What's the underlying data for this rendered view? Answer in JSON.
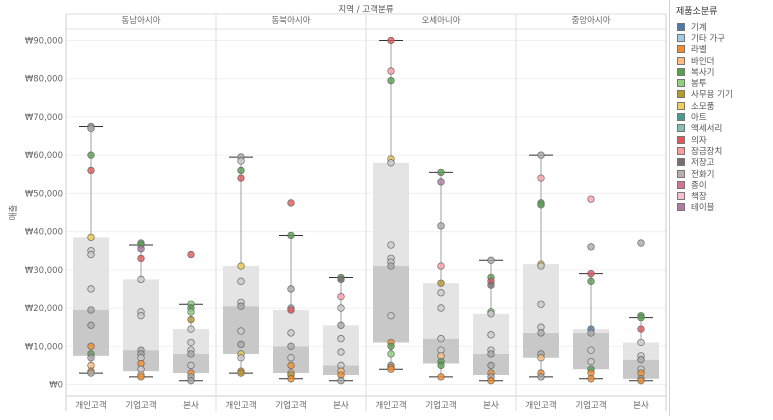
{
  "chart_data": {
    "type": "boxplot",
    "header_title": "지역 / 고객분류",
    "ylabel": "매출",
    "ylim": [
      -3000,
      93000
    ],
    "yticks": [
      {
        "v": 0,
        "label": "₩0"
      },
      {
        "v": 10000,
        "label": "₩10,000"
      },
      {
        "v": 20000,
        "label": "₩20,000"
      },
      {
        "v": 30000,
        "label": "₩30,000"
      },
      {
        "v": 40000,
        "label": "₩40,000"
      },
      {
        "v": 50000,
        "label": "₩50,000"
      },
      {
        "v": 60000,
        "label": "₩60,000"
      },
      {
        "v": 70000,
        "label": "₩70,000"
      },
      {
        "v": 80000,
        "label": "₩80,000"
      },
      {
        "v": 90000,
        "label": "₩90,000"
      }
    ],
    "panels": [
      {
        "region": "동남아시아",
        "groups": [
          {
            "name": "개인고객",
            "min": 3000,
            "q1": 7500,
            "median": 19500,
            "q3": 38500,
            "max": 67500,
            "points": [
              [
                67500,
                "#999999"
              ],
              [
                67000,
                "#AAAAAA"
              ],
              [
                60000,
                "#59A14F"
              ],
              [
                56000,
                "#E15759"
              ],
              [
                38500,
                "#EDC948"
              ],
              [
                35000,
                "#CCCCCC"
              ],
              [
                34000,
                "#CCCCCC"
              ],
              [
                25000,
                "#CCCCCC"
              ],
              [
                19500,
                "#AAAAAA"
              ],
              [
                15500,
                "#AAAAAA"
              ],
              [
                10000,
                "#F28E2B"
              ],
              [
                8000,
                "#59A14F"
              ],
              [
                7000,
                "#AAAAAA"
              ],
              [
                5000,
                "#FFBE7D"
              ],
              [
                3500,
                "#F28E2B"
              ],
              [
                3000,
                "#AAAAAA"
              ]
            ]
          },
          {
            "name": "기업고객",
            "min": 2000,
            "q1": 3500,
            "median": 9000,
            "q3": 27500,
            "max": 36500,
            "points": [
              [
                37000,
                "#59A14F"
              ],
              [
                36500,
                "#59A14F"
              ],
              [
                35500,
                "#B07AA1"
              ],
              [
                33000,
                "#E15759"
              ],
              [
                27500,
                "#CCCCCC"
              ],
              [
                19000,
                "#CCCCCC"
              ],
              [
                18000,
                "#CCCCCC"
              ],
              [
                9000,
                "#AAAAAA"
              ],
              [
                8000,
                "#AAAAAA"
              ],
              [
                7000,
                "#CCCCCC"
              ],
              [
                5500,
                "#F28E2B"
              ],
              [
                4000,
                "#CCCCCC"
              ],
              [
                2500,
                "#FFBE7D"
              ],
              [
                2000,
                "#F28E2B"
              ]
            ]
          },
          {
            "name": "본사",
            "min": 1000,
            "q1": 3000,
            "median": 8000,
            "q3": 14500,
            "max": 21000,
            "points": [
              [
                34000,
                "#E15759"
              ],
              [
                21000,
                "#8CD17D"
              ],
              [
                20000,
                "#59A14F"
              ],
              [
                19000,
                "#8CD17D"
              ],
              [
                17000,
                "#B6992D"
              ],
              [
                14500,
                "#CCCCCC"
              ],
              [
                11000,
                "#CCCCCC"
              ],
              [
                9000,
                "#CCCCCC"
              ],
              [
                8000,
                "#AAAAAA"
              ],
              [
                5000,
                "#CCCCCC"
              ],
              [
                3000,
                "#F28E2B"
              ],
              [
                2000,
                "#AAAAAA"
              ],
              [
                1000,
                "#AAAAAA"
              ]
            ]
          }
        ]
      },
      {
        "region": "동북아시아",
        "groups": [
          {
            "name": "개인고객",
            "min": 3000,
            "q1": 8000,
            "median": 20500,
            "q3": 31000,
            "max": 59500,
            "points": [
              [
                59500,
                "#AAAAAA"
              ],
              [
                58500,
                "#CCCCCC"
              ],
              [
                56000,
                "#59A14F"
              ],
              [
                54000,
                "#E15759"
              ],
              [
                31000,
                "#EDC948"
              ],
              [
                27000,
                "#CCCCCC"
              ],
              [
                21500,
                "#CCCCCC"
              ],
              [
                20500,
                "#AAAAAA"
              ],
              [
                14000,
                "#CCCCCC"
              ],
              [
                10500,
                "#AAAAAA"
              ],
              [
                8000,
                "#EDC948"
              ],
              [
                7000,
                "#CCCCCC"
              ],
              [
                3500,
                "#F28E2B"
              ],
              [
                3000,
                "#B6992D"
              ]
            ]
          },
          {
            "name": "기업고객",
            "min": 1500,
            "q1": 3000,
            "median": 10000,
            "q3": 19500,
            "max": 39000,
            "points": [
              [
                47500,
                "#E15759"
              ],
              [
                39000,
                "#59A14F"
              ],
              [
                25000,
                "#AAAAAA"
              ],
              [
                20000,
                "#AAAAAA"
              ],
              [
                19500,
                "#E15759"
              ],
              [
                13500,
                "#CCCCCC"
              ],
              [
                10000,
                "#AAAAAA"
              ],
              [
                7000,
                "#CCCCCC"
              ],
              [
                5000,
                "#F28E2B"
              ],
              [
                3000,
                "#FFBE7D"
              ],
              [
                2500,
                "#B6992D"
              ],
              [
                1500,
                "#F28E2B"
              ]
            ]
          },
          {
            "name": "본사",
            "min": 1000,
            "q1": 2500,
            "median": 5000,
            "q3": 15500,
            "max": 28000,
            "points": [
              [
                28000,
                "#59A14F"
              ],
              [
                27500,
                "#79706E"
              ],
              [
                23000,
                "#FF9DA7"
              ],
              [
                20000,
                "#CCCCCC"
              ],
              [
                15500,
                "#AAAAAA"
              ],
              [
                12000,
                "#CCCCCC"
              ],
              [
                8500,
                "#CCCCCC"
              ],
              [
                5000,
                "#CCCCCC"
              ],
              [
                3500,
                "#FFBE7D"
              ],
              [
                2500,
                "#F28E2B"
              ],
              [
                1000,
                "#AAAAAA"
              ]
            ]
          }
        ]
      },
      {
        "region": "오세아니아",
        "groups": [
          {
            "name": "개인고객",
            "min": 4000,
            "q1": 11000,
            "median": 31000,
            "q3": 58000,
            "max": 90000,
            "points": [
              [
                90000,
                "#E15759"
              ],
              [
                82000,
                "#FF9DA7"
              ],
              [
                79500,
                "#59A14F"
              ],
              [
                59000,
                "#EDC948"
              ],
              [
                58000,
                "#CCCCCC"
              ],
              [
                36500,
                "#CCCCCC"
              ],
              [
                33000,
                "#CCCCCC"
              ],
              [
                32000,
                "#CCCCCC"
              ],
              [
                31000,
                "#AAAAAA"
              ],
              [
                18000,
                "#CCCCCC"
              ],
              [
                11000,
                "#F28E2B"
              ],
              [
                10000,
                "#59A14F"
              ],
              [
                8000,
                "#8CD17D"
              ],
              [
                5000,
                "#AAAAAA"
              ],
              [
                4500,
                "#F28E2B"
              ],
              [
                4000,
                "#F28E2B"
              ]
            ]
          },
          {
            "name": "기업고객",
            "min": 2000,
            "q1": 5500,
            "median": 12000,
            "q3": 26500,
            "max": 55500,
            "points": [
              [
                55500,
                "#59A14F"
              ],
              [
                53000,
                "#B07AA1"
              ],
              [
                41500,
                "#AAAAAA"
              ],
              [
                31000,
                "#FF9DA7"
              ],
              [
                26500,
                "#B6992D"
              ],
              [
                24000,
                "#CCCCCC"
              ],
              [
                20000,
                "#CCCCCC"
              ],
              [
                12000,
                "#CCCCCC"
              ],
              [
                9000,
                "#CCCCCC"
              ],
              [
                7500,
                "#FFBE7D"
              ],
              [
                6000,
                "#59A14F"
              ],
              [
                5000,
                "#59A14F"
              ],
              [
                2000,
                "#F28E2B"
              ]
            ]
          },
          {
            "name": "본사",
            "min": 1000,
            "q1": 2500,
            "median": 8000,
            "q3": 18500,
            "max": 32500,
            "points": [
              [
                32500,
                "#AAAAAA"
              ],
              [
                28000,
                "#59A14F"
              ],
              [
                27000,
                "#E15759"
              ],
              [
                26000,
                "#79706E"
              ],
              [
                19000,
                "#8CD17D"
              ],
              [
                18500,
                "#CCCCCC"
              ],
              [
                13000,
                "#CCCCCC"
              ],
              [
                9000,
                "#CCCCCC"
              ],
              [
                8000,
                "#AAAAAA"
              ],
              [
                5000,
                "#AAAAAA"
              ],
              [
                3000,
                "#F28E2B"
              ],
              [
                2000,
                "#AAAAAA"
              ],
              [
                1000,
                "#F28E2B"
              ]
            ]
          }
        ]
      },
      {
        "region": "중앙아시아",
        "groups": [
          {
            "name": "개인고객",
            "min": 2000,
            "q1": 7000,
            "median": 13500,
            "q3": 31500,
            "max": 60000,
            "points": [
              [
                60000,
                "#AAAAAA"
              ],
              [
                54000,
                "#FF9DA7"
              ],
              [
                47500,
                "#59A14F"
              ],
              [
                47000,
                "#59A14F"
              ],
              [
                31500,
                "#EDC948"
              ],
              [
                31000,
                "#CCCCCC"
              ],
              [
                21000,
                "#CCCCCC"
              ],
              [
                15000,
                "#CCCCCC"
              ],
              [
                13500,
                "#AAAAAA"
              ],
              [
                8000,
                "#AAAAAA"
              ],
              [
                7000,
                "#FFBE7D"
              ],
              [
                3000,
                "#F28E2B"
              ],
              [
                2000,
                "#AAAAAA"
              ]
            ]
          },
          {
            "name": "기업고객",
            "min": 1500,
            "q1": 4000,
            "median": 13500,
            "q3": 14500,
            "max": 29000,
            "points": [
              [
                48500,
                "#FF9DA7"
              ],
              [
                36000,
                "#AAAAAA"
              ],
              [
                29000,
                "#E15759"
              ],
              [
                27000,
                "#59A14F"
              ],
              [
                14500,
                "#4E79A7"
              ],
              [
                13500,
                "#AAAAAA"
              ],
              [
                9000,
                "#CCCCCC"
              ],
              [
                6000,
                "#CCCCCC"
              ],
              [
                4000,
                "#59A14F"
              ],
              [
                3000,
                "#F28E2B"
              ],
              [
                1500,
                "#F28E2B"
              ]
            ]
          },
          {
            "name": "본사",
            "min": 1000,
            "q1": 1500,
            "median": 6500,
            "q3": 11000,
            "max": 17500,
            "points": [
              [
                37000,
                "#AAAAAA"
              ],
              [
                18000,
                "#59A14F"
              ],
              [
                17500,
                "#59A14F"
              ],
              [
                14500,
                "#E15759"
              ],
              [
                11000,
                "#CCCCCC"
              ],
              [
                7500,
                "#CCCCCC"
              ],
              [
                6500,
                "#AAAAAA"
              ],
              [
                4000,
                "#CCCCCC"
              ],
              [
                3000,
                "#F28E2B"
              ],
              [
                1500,
                "#AAAAAA"
              ],
              [
                1000,
                "#F28E2B"
              ]
            ]
          }
        ]
      }
    ],
    "legend": {
      "title": "제품소분류",
      "items": [
        {
          "label": "기계",
          "color": "#4E79A7"
        },
        {
          "label": "기타 가구",
          "color": "#A0CBE8"
        },
        {
          "label": "라벨",
          "color": "#F28E2B"
        },
        {
          "label": "바인더",
          "color": "#FFBE7D"
        },
        {
          "label": "복사기",
          "color": "#59A14F"
        },
        {
          "label": "봉투",
          "color": "#8CD17D"
        },
        {
          "label": "사무용 기기",
          "color": "#B6992D"
        },
        {
          "label": "소모품",
          "color": "#F1CE63"
        },
        {
          "label": "아트",
          "color": "#499894"
        },
        {
          "label": "액세서리",
          "color": "#86BCB6"
        },
        {
          "label": "의자",
          "color": "#E15759"
        },
        {
          "label": "잠금장치",
          "color": "#FF9D9A"
        },
        {
          "label": "저장고",
          "color": "#79706E"
        },
        {
          "label": "전화기",
          "color": "#BAB0AC"
        },
        {
          "label": "종이",
          "color": "#D37295"
        },
        {
          "label": "책장",
          "color": "#FABFD2"
        },
        {
          "label": "테이블",
          "color": "#B07AA1"
        }
      ]
    }
  }
}
